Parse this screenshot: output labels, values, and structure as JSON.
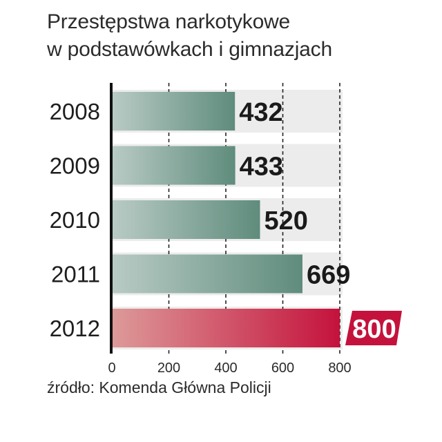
{
  "title_lines": [
    "Przestępstwa narkotykowe",
    "w podstawówkach i gimnazjach"
  ],
  "source": "źródło: Komenda Główna Policji",
  "colors": {
    "bar_start": "#b9cbc5",
    "bar_end": "#5f8c7c",
    "highlight_start": "#dd9a99",
    "highlight_end": "#c4123c",
    "band": "#ececec",
    "axis": "#111111",
    "grid": "#222222"
  },
  "chart_data": {
    "type": "bar",
    "orientation": "horizontal",
    "categories": [
      "2008",
      "2009",
      "2010",
      "2011",
      "2012"
    ],
    "values": [
      432,
      433,
      520,
      669,
      800
    ],
    "value_labels": [
      "432",
      "433",
      "520",
      "669",
      "800"
    ],
    "highlight_index": 4,
    "xlim": [
      0,
      800
    ],
    "xticks": [
      "0",
      "200",
      "400",
      "600",
      "800"
    ],
    "grid": "vertical dashed"
  }
}
